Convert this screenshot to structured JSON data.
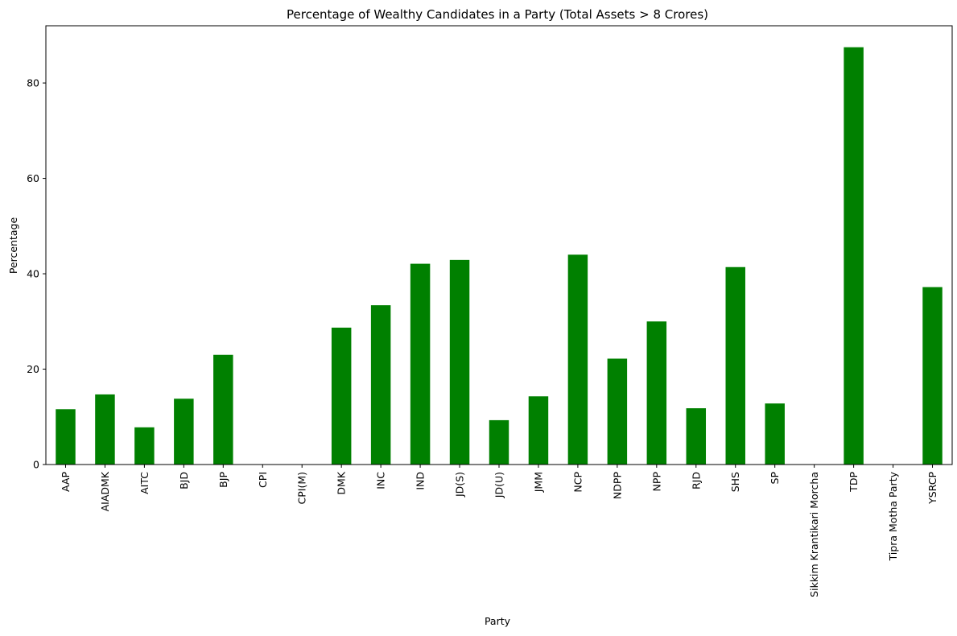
{
  "chart_data": {
    "type": "bar",
    "title": "Percentage of Wealthy Candidates in a Party  (Total Assets > 8 Crores)",
    "xlabel": "Party",
    "ylabel": "Percentage",
    "ylim": [
      0,
      92
    ],
    "yticks": [
      0,
      20,
      40,
      60,
      80
    ],
    "grid": false,
    "bar_color": "#008000",
    "categories": [
      "AAP",
      "AIADMK",
      "AITC",
      "BJD",
      "BJP",
      "CPI",
      "CPI(M)",
      "DMK",
      "INC",
      "IND",
      "JD(S)",
      "JD(U)",
      "JMM",
      "NCP",
      "NDPP",
      "NPP",
      "RJD",
      "SHS",
      "SP",
      "Sikkim Krantikari Morcha",
      "TDP",
      "Tipra Motha Party",
      "YSRCP"
    ],
    "values": [
      11.6,
      14.7,
      7.8,
      13.8,
      23.0,
      0,
      0,
      28.7,
      33.4,
      42.1,
      42.9,
      9.3,
      14.3,
      44.0,
      22.2,
      30.0,
      11.8,
      41.4,
      12.8,
      0,
      87.5,
      0,
      37.2
    ]
  }
}
